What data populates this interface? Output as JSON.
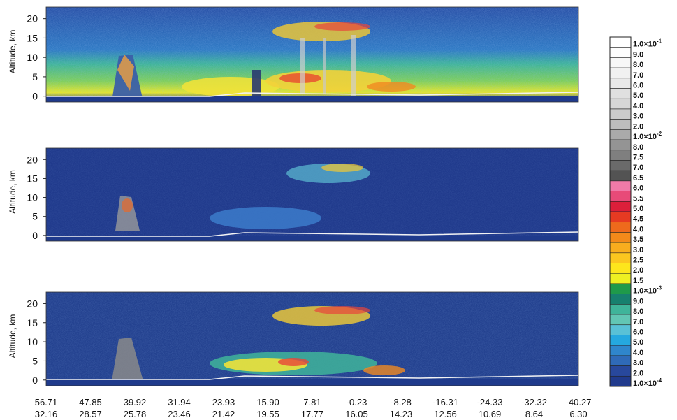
{
  "chart_data": {
    "type": "heatmap",
    "panels": [
      {
        "ylabel": "Altitude, km",
        "yticks": [
          0,
          5,
          10,
          15,
          20
        ],
        "ylim": [
          -1.5,
          23
        ]
      },
      {
        "ylabel": "Altitude, km",
        "yticks": [
          0,
          5,
          10,
          15,
          20
        ],
        "ylim": [
          -1.5,
          23
        ]
      },
      {
        "ylabel": "Altitude, km",
        "yticks": [
          0,
          5,
          10,
          15,
          20
        ],
        "ylim": [
          -1.5,
          23
        ]
      }
    ],
    "x_tick_rows": [
      [
        "56.71",
        "47.85",
        "39.92",
        "31.94",
        "23.93",
        "15.90",
        "7.81",
        "-0.23",
        "-8.28",
        "-16.31",
        "-24.33",
        "-32.32",
        "-40.27"
      ],
      [
        "32.16",
        "28.57",
        "25.78",
        "23.46",
        "21.42",
        "19.55",
        "17.77",
        "16.05",
        "14.23",
        "12.56",
        "10.69",
        "8.64",
        "6.30"
      ]
    ],
    "colorbar": {
      "entries": [
        {
          "label": "1.0×10",
          "exp": "-1",
          "color": "#ffffff"
        },
        {
          "label": "9.0",
          "color": "#fdfdfd"
        },
        {
          "label": "8.0",
          "color": "#f7f7f7"
        },
        {
          "label": "7.0",
          "color": "#f1f1f1"
        },
        {
          "label": "6.0",
          "color": "#e9e9e9"
        },
        {
          "label": "5.0",
          "color": "#e0e0e0"
        },
        {
          "label": "4.0",
          "color": "#d6d6d6"
        },
        {
          "label": "3.0",
          "color": "#cbcbcb"
        },
        {
          "label": "2.0",
          "color": "#bdbdbd"
        },
        {
          "label": "1.0×10",
          "exp": "-2",
          "color": "#aaaaaa"
        },
        {
          "label": "8.0",
          "color": "#949494"
        },
        {
          "label": "7.5",
          "color": "#7f7f7f"
        },
        {
          "label": "7.0",
          "color": "#6a6a6a"
        },
        {
          "label": "6.5",
          "color": "#535353"
        },
        {
          "label": "6.0",
          "color": "#f07aa8"
        },
        {
          "label": "5.5",
          "color": "#e84a78"
        },
        {
          "label": "5.0",
          "color": "#dc1f3a"
        },
        {
          "label": "4.5",
          "color": "#e63a22"
        },
        {
          "label": "4.0",
          "color": "#ee6a1c"
        },
        {
          "label": "3.5",
          "color": "#f38a1a"
        },
        {
          "label": "3.0",
          "color": "#f8ad1e"
        },
        {
          "label": "2.5",
          "color": "#fbc61f"
        },
        {
          "label": "2.0",
          "color": "#fde61c"
        },
        {
          "label": "1.5",
          "color": "#eef022"
        },
        {
          "label": "1.0×10",
          "exp": "-3",
          "color": "#1f9a4a"
        },
        {
          "label": "9.0",
          "color": "#17806e"
        },
        {
          "label": "8.0",
          "color": "#3fb49a"
        },
        {
          "label": "7.0",
          "color": "#62c6b4"
        },
        {
          "label": "6.0",
          "color": "#59c1d6"
        },
        {
          "label": "5.0",
          "color": "#25a8df"
        },
        {
          "label": "4.0",
          "color": "#2f86cc"
        },
        {
          "label": "3.0",
          "color": "#2f6ab8"
        },
        {
          "label": "2.0",
          "color": "#28489c"
        },
        {
          "label": "1.0×10",
          "exp": "-4",
          "color": "#203a8c"
        }
      ]
    }
  }
}
